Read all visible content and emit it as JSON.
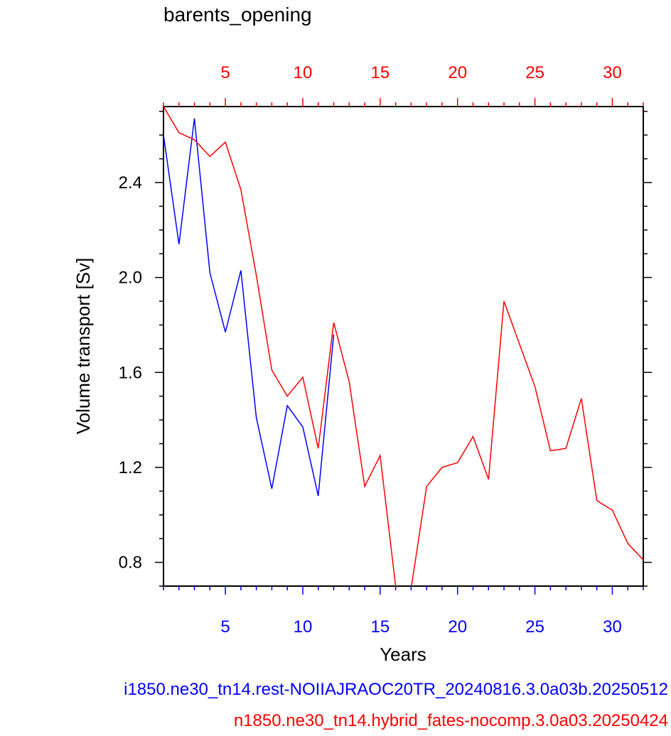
{
  "chart_data": {
    "type": "line",
    "title": "barents_opening",
    "xlabel": "Years",
    "ylabel": "Volume transport [Sv]",
    "xlim": [
      1,
      32
    ],
    "ylim": [
      0.7,
      2.72
    ],
    "yticks": [
      0.8,
      1.2,
      1.6,
      2.0,
      2.4
    ],
    "ytick_labels": [
      "0.8",
      "1.2",
      "1.6",
      "2.0",
      "2.4"
    ],
    "xticks_bottom": [
      5,
      10,
      15,
      20,
      25,
      30
    ],
    "xtick_labels_bottom": [
      "5",
      "10",
      "15",
      "20",
      "25",
      "30"
    ],
    "xticks_top": [
      5,
      10,
      15,
      20,
      25,
      30
    ],
    "xtick_labels_top": [
      "5",
      "10",
      "15",
      "20",
      "25",
      "30"
    ],
    "grid": false,
    "legend": "bottom-center",
    "series": [
      {
        "name": "i1850.ne30_tn14.rest-NOIIAJRAOC20TR_20240816.3.0a03b.20250512",
        "color": "#0000ff",
        "x": [
          1,
          2,
          3,
          4,
          5,
          6,
          7,
          8,
          9,
          10,
          11,
          12
        ],
        "values": [
          2.6,
          2.14,
          2.67,
          2.02,
          1.77,
          2.03,
          1.41,
          1.11,
          1.46,
          1.37,
          1.08,
          1.76
        ]
      },
      {
        "name": "n1850.ne30_tn14.hybrid_fates-nocomp.3.0a03.20250424",
        "color": "#ff0000",
        "x": [
          1,
          2,
          3,
          4,
          5,
          6,
          7,
          8,
          9,
          10,
          11,
          12,
          13,
          14,
          15,
          16,
          17,
          18,
          19,
          20,
          21,
          22,
          23,
          24,
          25,
          26,
          27,
          28,
          29,
          30,
          31,
          32
        ],
        "values": [
          2.72,
          2.61,
          2.58,
          2.51,
          2.57,
          2.37,
          2.01,
          1.61,
          1.5,
          1.58,
          1.28,
          1.81,
          1.56,
          1.12,
          1.25,
          0.7,
          0.69,
          1.12,
          1.2,
          1.22,
          1.33,
          1.15,
          1.9,
          1.72,
          1.54,
          1.27,
          1.28,
          1.49,
          1.06,
          1.02,
          0.88,
          0.81
        ]
      }
    ]
  }
}
